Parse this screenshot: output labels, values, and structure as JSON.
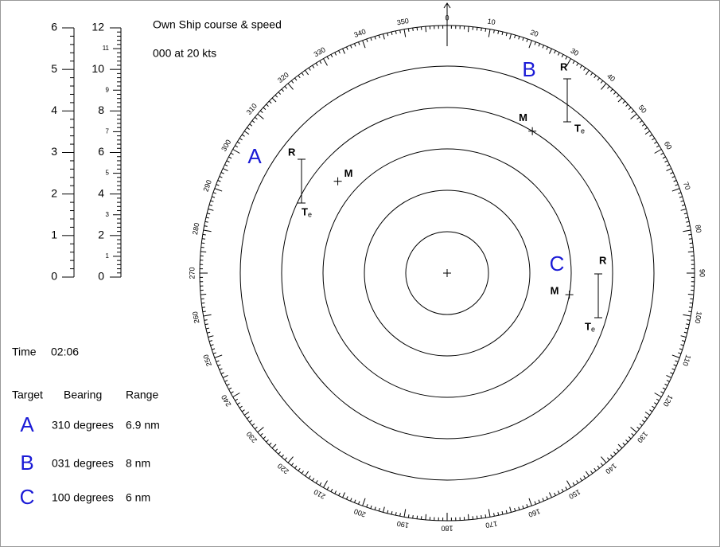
{
  "own_ship": {
    "title": "Own Ship course & speed",
    "value": "000 at 20 kts"
  },
  "scales": {
    "left": [
      0,
      1,
      2,
      3,
      4,
      5,
      6
    ],
    "right": [
      0,
      1,
      2,
      3,
      4,
      5,
      6,
      7,
      8,
      9,
      10,
      11,
      12
    ]
  },
  "dial": {
    "bearings": [
      0,
      10,
      20,
      30,
      40,
      50,
      60,
      70,
      80,
      90,
      100,
      110,
      120,
      130,
      140,
      150,
      160,
      170,
      180,
      190,
      200,
      210,
      220,
      230,
      240,
      250,
      260,
      270,
      280,
      290,
      300,
      310,
      320,
      330,
      340,
      350
    ]
  },
  "plot_labels": {
    "relative": "R",
    "measured": "M",
    "true": "T",
    "true_sub": "e"
  },
  "time": {
    "label": "Time",
    "value": "02:06"
  },
  "table": {
    "headers": [
      "Target",
      "Bearing",
      "Range"
    ],
    "rows": [
      {
        "target": "A",
        "bearing": {
          "value": 310,
          "label": "310 degrees"
        },
        "range": {
          "value": 6.9,
          "label": "6.9 nm"
        }
      },
      {
        "target": "B",
        "bearing": {
          "value": 31,
          "label": "031 degrees"
        },
        "range": {
          "value": 8,
          "label": "8 nm"
        }
      },
      {
        "target": "C",
        "bearing": {
          "value": 100,
          "label": "100 degrees"
        },
        "range": {
          "value": 6,
          "label": "6 nm"
        }
      }
    ]
  }
}
